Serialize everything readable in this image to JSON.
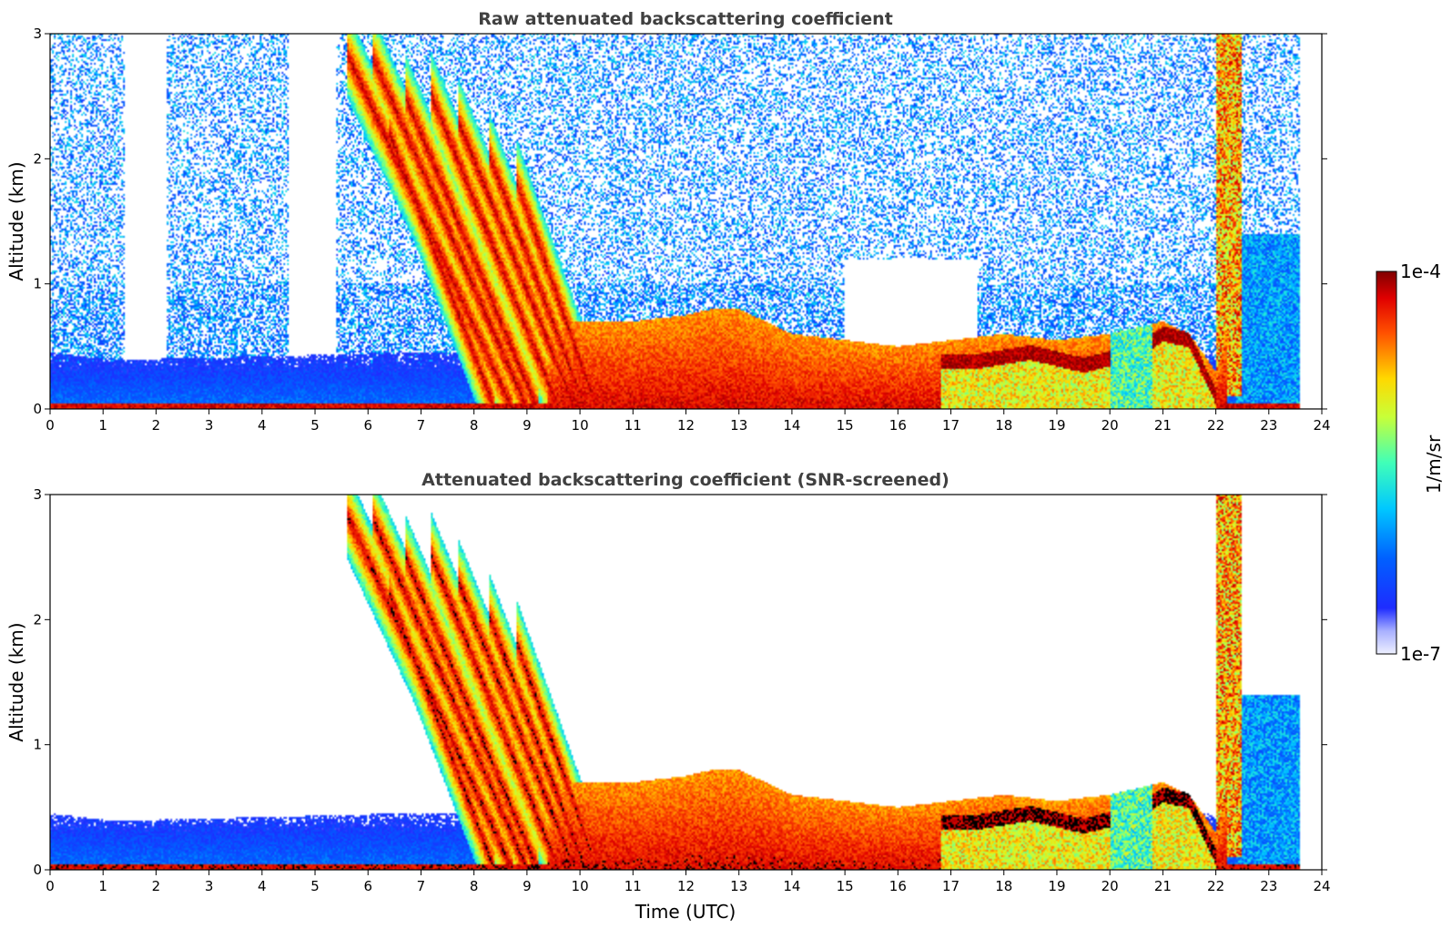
{
  "chart_data": [
    {
      "type": "heatmap",
      "title": "Raw attenuated backscattering coefficient",
      "xlabel": "",
      "ylabel": "Altitude (km)",
      "xlim": [
        0,
        24
      ],
      "ylim": [
        0,
        3
      ],
      "xticks": [
        "0",
        "1",
        "2",
        "3",
        "4",
        "5",
        "6",
        "7",
        "8",
        "9",
        "10",
        "11",
        "12",
        "13",
        "14",
        "15",
        "16",
        "17",
        "18",
        "19",
        "20",
        "21",
        "22",
        "23",
        "24"
      ],
      "yticks": [
        "0",
        "1",
        "2",
        "3"
      ],
      "screened": false,
      "colorscale": "jet-log"
    },
    {
      "type": "heatmap",
      "title": "Attenuated backscattering coefficient (SNR-screened)",
      "xlabel": "Time (UTC)",
      "ylabel": "Altitude (km)",
      "xlim": [
        0,
        24
      ],
      "ylim": [
        0,
        3
      ],
      "xticks": [
        "0",
        "1",
        "2",
        "3",
        "4",
        "5",
        "6",
        "7",
        "8",
        "9",
        "10",
        "11",
        "12",
        "13",
        "14",
        "15",
        "16",
        "17",
        "18",
        "19",
        "20",
        "21",
        "22",
        "23",
        "24"
      ],
      "yticks": [
        "0",
        "1",
        "2",
        "3"
      ],
      "screened": true,
      "colorscale": "jet-log"
    }
  ],
  "colorbar": {
    "label": "1/m/sr",
    "max_label": "1e-4",
    "min_label": "1e-7",
    "range": [
      1e-07,
      0.0001
    ],
    "scale": "log"
  },
  "colors": {
    "title": "#404040",
    "saturated": "#000000"
  }
}
